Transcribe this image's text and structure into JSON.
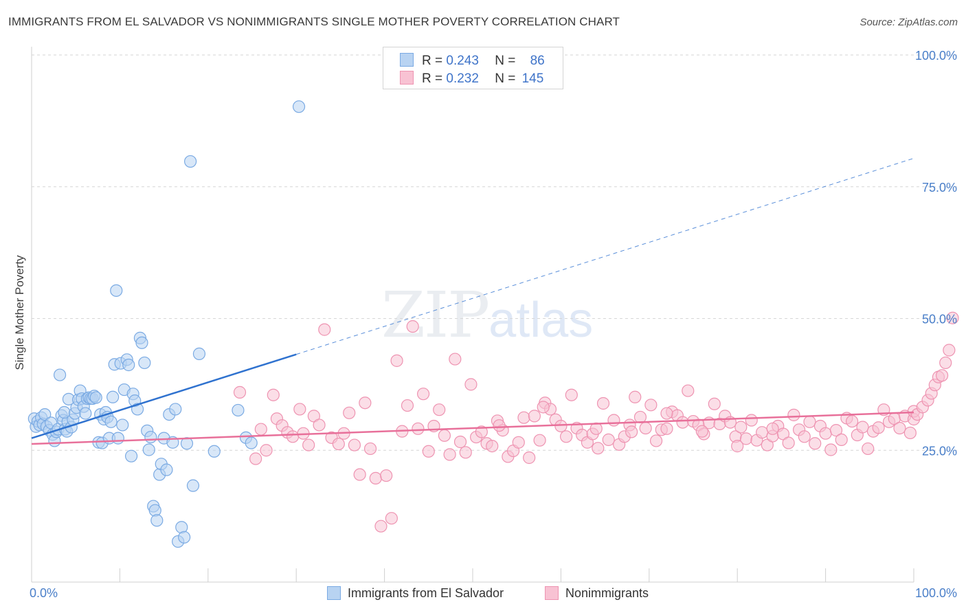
{
  "title": "IMMIGRANTS FROM EL SALVADOR VS NONIMMIGRANTS SINGLE MOTHER POVERTY CORRELATION CHART",
  "source": "Source: ZipAtlas.com",
  "watermark": {
    "zip": "ZIP",
    "atlas": "atlas"
  },
  "legend_top": [
    {
      "r_label": "R =",
      "r_value": "0.243",
      "n_label": "N =",
      "n_value": "86"
    },
    {
      "r_label": "R =",
      "r_value": "0.232",
      "n_label": "N =",
      "n_value": "145"
    }
  ],
  "legend_bottom": [
    "Immigrants from El Salvador",
    "Nonimmigrants"
  ],
  "colors": {
    "blue_fill": "#b8d3f2",
    "blue_stroke": "#7aaae3",
    "blue_line": "#2f72cf",
    "pink_fill": "#f8c2d3",
    "pink_stroke": "#ee93b1",
    "pink_line": "#e8709a",
    "tick": "#4a7fc9",
    "grid": "#d6d6d6"
  },
  "chart_data": {
    "type": "scatter",
    "title": "IMMIGRANTS FROM EL SALVADOR VS NONIMMIGRANTS SINGLE MOTHER POVERTY CORRELATION CHART",
    "xlabel": "",
    "ylabel": "Single Mother Poverty",
    "xlim": [
      0,
      100
    ],
    "ylim": [
      0,
      100
    ],
    "x_tick_labels": [
      "0.0%",
      "100.0%"
    ],
    "y_ticks": [
      25,
      50,
      75,
      100
    ],
    "y_tick_labels": [
      "25.0%",
      "50.0%",
      "75.0%",
      "100.0%"
    ],
    "grid": "horizontal dashed",
    "legend_position": "top-center",
    "series": [
      {
        "name": "Immigrants from El Salvador",
        "R": 0.243,
        "N": 86,
        "trend": {
          "x": [
            0,
            30
          ],
          "y": [
            27.3,
            43.2
          ],
          "dashed_to": [
            100,
            80.4
          ]
        },
        "points": [
          [
            0.3,
            31
          ],
          [
            0.5,
            29.5
          ],
          [
            0.7,
            30.5
          ],
          [
            0.9,
            29.8
          ],
          [
            1.1,
            31.2
          ],
          [
            1.3,
            30
          ],
          [
            1.5,
            31.8
          ],
          [
            1.7,
            29.5
          ],
          [
            2,
            28.8
          ],
          [
            2.2,
            30.2
          ],
          [
            2.4,
            28
          ],
          [
            2.6,
            26.8
          ],
          [
            2.8,
            28.5
          ],
          [
            3,
            29
          ],
          [
            3.2,
            39.3
          ],
          [
            3.4,
            31.6
          ],
          [
            3.6,
            30.7
          ],
          [
            3.8,
            29
          ],
          [
            4,
            28.6
          ],
          [
            4.1,
            30.4
          ],
          [
            3.7,
            32.2
          ],
          [
            4.2,
            34.7
          ],
          [
            4.5,
            29.4
          ],
          [
            4.7,
            30.8
          ],
          [
            4.9,
            32
          ],
          [
            5.1,
            33.1
          ],
          [
            5.3,
            34.6
          ],
          [
            5.5,
            36.3
          ],
          [
            5.7,
            34.8
          ],
          [
            5.9,
            33.3
          ],
          [
            6.1,
            32
          ],
          [
            6.3,
            34.8
          ],
          [
            6.5,
            35
          ],
          [
            6.7,
            34.8
          ],
          [
            6.9,
            34.8
          ],
          [
            7.1,
            35.3
          ],
          [
            7.3,
            35
          ],
          [
            7.6,
            26.5
          ],
          [
            7.8,
            31.8
          ],
          [
            8,
            26.4
          ],
          [
            8.2,
            30.9
          ],
          [
            8.4,
            32.2
          ],
          [
            8.6,
            31.3
          ],
          [
            8.8,
            27.3
          ],
          [
            9,
            30.4
          ],
          [
            9.2,
            35.1
          ],
          [
            9.4,
            41.3
          ],
          [
            9.6,
            55.3
          ],
          [
            9.8,
            27.3
          ],
          [
            10.1,
            41.5
          ],
          [
            10.3,
            29.8
          ],
          [
            10.5,
            36.5
          ],
          [
            10.8,
            42.2
          ],
          [
            11,
            41.2
          ],
          [
            11.3,
            23.9
          ],
          [
            11.5,
            35.7
          ],
          [
            11.7,
            34.4
          ],
          [
            12,
            32.8
          ],
          [
            12.3,
            46.3
          ],
          [
            12.5,
            45.4
          ],
          [
            12.8,
            41.6
          ],
          [
            13.1,
            28.7
          ],
          [
            13.3,
            25.1
          ],
          [
            13.5,
            27.5
          ],
          [
            13.8,
            14.4
          ],
          [
            14,
            13.6
          ],
          [
            14.2,
            11.7
          ],
          [
            14.5,
            20.4
          ],
          [
            14.7,
            22.4
          ],
          [
            15,
            27.3
          ],
          [
            15.3,
            21.3
          ],
          [
            15.6,
            31.8
          ],
          [
            16,
            26.5
          ],
          [
            16.3,
            32.8
          ],
          [
            16.6,
            7.7
          ],
          [
            17,
            10.4
          ],
          [
            17.3,
            8.5
          ],
          [
            17.6,
            26.3
          ],
          [
            18,
            79.8
          ],
          [
            18.3,
            18.3
          ],
          [
            19,
            43.3
          ],
          [
            20.7,
            24.8
          ],
          [
            23.4,
            32.6
          ],
          [
            24.3,
            27.4
          ],
          [
            24.9,
            26.4
          ],
          [
            30.3,
            90.2
          ]
        ]
      },
      {
        "name": "Nonimmigrants",
        "R": 0.232,
        "N": 145,
        "trend": {
          "x": [
            0,
            100
          ],
          "y": [
            26.2,
            32.2
          ]
        },
        "points": [
          [
            23.6,
            36
          ],
          [
            25.4,
            23.4
          ],
          [
            26,
            29
          ],
          [
            26.6,
            25
          ],
          [
            27.4,
            35.5
          ],
          [
            27.8,
            31
          ],
          [
            28.4,
            29.7
          ],
          [
            29,
            28.4
          ],
          [
            29.6,
            27.6
          ],
          [
            30.4,
            32.8
          ],
          [
            30.8,
            28.2
          ],
          [
            31.4,
            26
          ],
          [
            32,
            31.5
          ],
          [
            32.6,
            29.8
          ],
          [
            33.2,
            47.9
          ],
          [
            34,
            27.4
          ],
          [
            34.8,
            26.2
          ],
          [
            35.4,
            28.2
          ],
          [
            36,
            32.1
          ],
          [
            36.6,
            26
          ],
          [
            37.2,
            20.4
          ],
          [
            37.8,
            34
          ],
          [
            38.4,
            25.3
          ],
          [
            39,
            19.7
          ],
          [
            39.6,
            10.6
          ],
          [
            40.2,
            20.2
          ],
          [
            40.8,
            12.1
          ],
          [
            41.4,
            42
          ],
          [
            42,
            28.6
          ],
          [
            42.6,
            33.5
          ],
          [
            43.2,
            48.5
          ],
          [
            43.8,
            29.1
          ],
          [
            44.4,
            35.7
          ],
          [
            45,
            24.8
          ],
          [
            45.6,
            29.6
          ],
          [
            46.2,
            32.7
          ],
          [
            46.8,
            27.8
          ],
          [
            47.4,
            24.2
          ],
          [
            48,
            42.3
          ],
          [
            48.6,
            26.6
          ],
          [
            49.2,
            24.6
          ],
          [
            49.8,
            37.5
          ],
          [
            50.4,
            27.5
          ],
          [
            51,
            28.5
          ],
          [
            51.6,
            26.3
          ],
          [
            52.2,
            25.8
          ],
          [
            52.8,
            30.6
          ],
          [
            53.4,
            28.8
          ],
          [
            54,
            23.8
          ],
          [
            54.6,
            24.9
          ],
          [
            55.2,
            26.5
          ],
          [
            55.8,
            31.2
          ],
          [
            56.4,
            23.6
          ],
          [
            57,
            31.5
          ],
          [
            57.6,
            26.9
          ],
          [
            58.2,
            34
          ],
          [
            58.8,
            32.8
          ],
          [
            59.4,
            30.8
          ],
          [
            60,
            29.6
          ],
          [
            60.6,
            27.6
          ],
          [
            61.2,
            35.5
          ],
          [
            61.8,
            29.2
          ],
          [
            62.4,
            27.9
          ],
          [
            63,
            26.5
          ],
          [
            63.6,
            28.1
          ],
          [
            64.2,
            25.4
          ],
          [
            64.8,
            33.9
          ],
          [
            65.4,
            27
          ],
          [
            66,
            30.7
          ],
          [
            66.6,
            26.1
          ],
          [
            67.2,
            27.6
          ],
          [
            67.8,
            29.8
          ],
          [
            68.4,
            35.1
          ],
          [
            69,
            31.3
          ],
          [
            69.6,
            29.2
          ],
          [
            70.2,
            33.6
          ],
          [
            70.8,
            26.8
          ],
          [
            71.4,
            28.9
          ],
          [
            72,
            29.1
          ],
          [
            72.6,
            32.3
          ],
          [
            73.2,
            31.6
          ],
          [
            73.8,
            30.3
          ],
          [
            74.4,
            36.3
          ],
          [
            75,
            30.5
          ],
          [
            75.6,
            29.8
          ],
          [
            76.2,
            28.1
          ],
          [
            76.8,
            30.2
          ],
          [
            77.4,
            33.8
          ],
          [
            78,
            30
          ],
          [
            78.6,
            31.5
          ],
          [
            79.2,
            30.3
          ],
          [
            79.8,
            27.6
          ],
          [
            80.4,
            29.4
          ],
          [
            81,
            27.2
          ],
          [
            81.6,
            30.7
          ],
          [
            82.2,
            26.9
          ],
          [
            82.8,
            28.4
          ],
          [
            83.4,
            26
          ],
          [
            84,
            27.7
          ],
          [
            84.6,
            29.6
          ],
          [
            85.2,
            28.1
          ],
          [
            85.8,
            26.4
          ],
          [
            86.4,
            31.7
          ],
          [
            87,
            28.9
          ],
          [
            87.6,
            27.6
          ],
          [
            88.2,
            30.4
          ],
          [
            88.8,
            26.3
          ],
          [
            89.4,
            29.6
          ],
          [
            90,
            28.2
          ],
          [
            90.6,
            25.1
          ],
          [
            91.2,
            28.8
          ],
          [
            91.8,
            27
          ],
          [
            92.4,
            31.1
          ],
          [
            93,
            30.5
          ],
          [
            93.6,
            27.9
          ],
          [
            94.2,
            29.4
          ],
          [
            94.8,
            25.3
          ],
          [
            95.4,
            28.6
          ],
          [
            96,
            29.3
          ],
          [
            96.6,
            32.7
          ],
          [
            97.2,
            30.4
          ],
          [
            97.8,
            31
          ],
          [
            98.4,
            29.2
          ],
          [
            99,
            31.5
          ],
          [
            99.6,
            28.3
          ],
          [
            100,
            30.9
          ],
          [
            100,
            32.4
          ],
          [
            100.4,
            31.8
          ],
          [
            101,
            33.2
          ],
          [
            101.6,
            34.5
          ],
          [
            102,
            35.8
          ],
          [
            102.4,
            37.4
          ],
          [
            102.8,
            38.9
          ],
          [
            103.2,
            39.2
          ],
          [
            103.6,
            41.6
          ],
          [
            104,
            44
          ],
          [
            104.4,
            50.1
          ],
          [
            53,
            29.7
          ],
          [
            58,
            33.2
          ],
          [
            64,
            29.1
          ],
          [
            68,
            28.5
          ],
          [
            72,
            32
          ],
          [
            76,
            28.6
          ],
          [
            80,
            25.8
          ],
          [
            84,
            29.1
          ]
        ]
      }
    ]
  }
}
